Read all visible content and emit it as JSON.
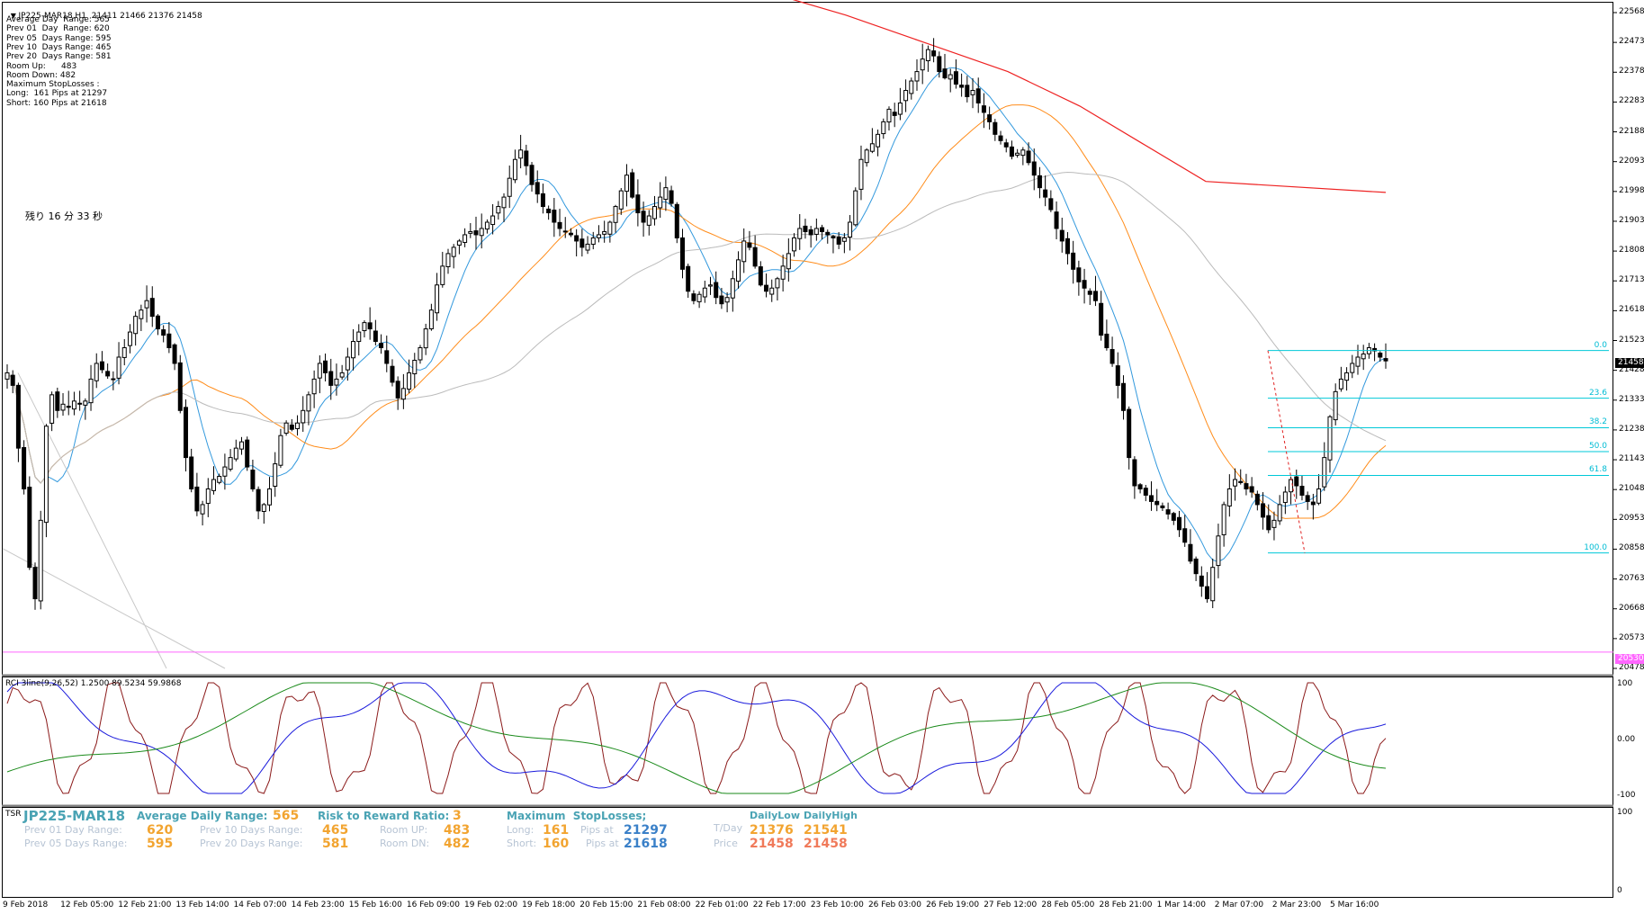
{
  "header": {
    "symbol_line": "JP225-MAR18,H1  21411 21466 21376 21458",
    "info_lines": [
      "Average Day  Range: 565",
      "Prev 01  Day  Range: 620",
      "Prev 05  Days Range: 595",
      "Prev 10  Days Range: 465",
      "Prev 20  Days Range: 581",
      "Room Up:      483",
      "Room Down: 482",
      "Maximum StopLosses :",
      "Long:  161 Pips at 21297",
      "Short: 160 Pips at 21618"
    ],
    "countdown": "残り 16 分 33 秒"
  },
  "price_axis": {
    "ticks": [
      "22568",
      "22473",
      "22378",
      "22283",
      "22188",
      "22093",
      "21998",
      "21903",
      "21808",
      "21713",
      "21618",
      "21523",
      "21428",
      "21333",
      "21238",
      "21143",
      "21048",
      "20953",
      "20858",
      "20763",
      "20668",
      "20573",
      "20478"
    ],
    "current_price": "21458",
    "current_price_bg": "#000000",
    "horizontal_line_price": "20530",
    "horizontal_line_color": "#ff66ff"
  },
  "fibonacci": {
    "color": "#00c8d8",
    "levels": [
      {
        "label": "0.0",
        "price": 21491
      },
      {
        "label": "23.6",
        "price": 21339
      },
      {
        "label": "38.2",
        "price": 21245
      },
      {
        "label": "50.0",
        "price": 21169
      },
      {
        "label": "61.8",
        "price": 21093
      },
      {
        "label": "100.0",
        "price": 20846
      }
    ]
  },
  "rci": {
    "label": "RCI 3line(9,26,52) 1.2500 89.5234 59.9868",
    "axis_ticks": [
      "100",
      "0.00",
      "-100"
    ],
    "colors": {
      "short": "#8b1a1a",
      "mid": "#1a1adc",
      "long": "#1a8a1a"
    }
  },
  "tsr": {
    "label": "TSR",
    "symbol": "JP225-MAR18",
    "avg_range_label": "Average Daily Range:",
    "avg_range_value": "565",
    "rr_label": "Risk to Reward Ratio:",
    "rr_value": "3",
    "maxsl_label": "Maximum  StopLosses;",
    "daily_low_label": "DailyLow",
    "daily_high_label": "DailyHigh",
    "prev01_label": "Prev 01 Day Range:",
    "prev01_value": "620",
    "prev05_label": "Prev 05 Days Range:",
    "prev05_value": "595",
    "prev10_label": "Prev 10 Days Range:",
    "prev10_value": "465",
    "prev20_label": "Prev 20 Days Range:",
    "prev20_value": "581",
    "roomup_label": "Room UP:",
    "roomup_value": "483",
    "roomdn_label": "Room DN:",
    "roomdn_value": "482",
    "long_label": "Long:",
    "long_value": "161",
    "short_label": "Short:",
    "short_value": "160",
    "pipsat_label": "Pips at",
    "long_price": "21297",
    "short_price": "21618",
    "tday_label": "T/Day",
    "price_label": "Price",
    "tday_low": "21376",
    "tday_high": "21541",
    "price_low": "21458",
    "price_high": "21458",
    "axis_ticks": [
      "100",
      "0"
    ]
  },
  "time_axis": {
    "labels": [
      "9 Feb 2018",
      "12 Feb 05:00",
      "12 Feb 21:00",
      "13 Feb 14:00",
      "14 Feb 07:00",
      "14 Feb 23:00",
      "15 Feb 16:00",
      "16 Feb 09:00",
      "19 Feb 02:00",
      "19 Feb 18:00",
      "20 Feb 15:00",
      "21 Feb 08:00",
      "22 Feb 01:00",
      "22 Feb 17:00",
      "23 Feb 10:00",
      "26 Feb 03:00",
      "26 Feb 19:00",
      "27 Feb 12:00",
      "28 Feb 05:00",
      "28 Feb 21:00",
      "1 Mar 14:00",
      "2 Mar 07:00",
      "2 Mar 23:00",
      "5 Mar 16:00"
    ]
  },
  "chart_data": {
    "type": "candlestick",
    "symbol": "JP225-MAR18",
    "timeframe": "H1",
    "last_bar": {
      "open": 21411,
      "high": 21466,
      "low": 21376,
      "close": 21458
    },
    "ylim": [
      20430,
      22600
    ],
    "closes": [
      21420,
      21380,
      21180,
      21050,
      20800,
      20700,
      20950,
      21250,
      21350,
      21300,
      21320,
      21310,
      21330,
      21320,
      21330,
      21400,
      21450,
      21430,
      21410,
      21400,
      21470,
      21500,
      21550,
      21600,
      21620,
      21650,
      21600,
      21560,
      21540,
      21500,
      21450,
      21300,
      21150,
      21050,
      20980,
      21000,
      21050,
      21080,
      21090,
      21120,
      21150,
      21180,
      21200,
      21120,
      21050,
      20980,
      21000,
      21050,
      21130,
      21220,
      21260,
      21240,
      21260,
      21300,
      21350,
      21400,
      21450,
      21420,
      21380,
      21400,
      21420,
      21470,
      21520,
      21550,
      21580,
      21560,
      21520,
      21500,
      21450,
      21390,
      21340,
      21370,
      21420,
      21460,
      21500,
      21560,
      21620,
      21700,
      21760,
      21800,
      21820,
      21840,
      21860,
      21870,
      21860,
      21880,
      21900,
      21920,
      21950,
      21980,
      22040,
      22100,
      22130,
      22080,
      22020,
      21990,
      21950,
      21930,
      21900,
      21880,
      21870,
      21860,
      21840,
      21820,
      21830,
      21850,
      21860,
      21870,
      21900,
      21950,
      22000,
      22050,
      21980,
      21930,
      21900,
      21920,
      21950,
      21980,
      22010,
      21960,
      21850,
      21750,
      21680,
      21650,
      21670,
      21690,
      21700,
      21660,
      21640,
      21660,
      21720,
      21780,
      21840,
      21820,
      21760,
      21700,
      21680,
      21690,
      21720,
      21760,
      21800,
      21850,
      21880,
      21870,
      21860,
      21880,
      21870,
      21860,
      21850,
      21830,
      21850,
      21900,
      22000,
      22100,
      22130,
      22150,
      22180,
      22220,
      22260,
      22240,
      22280,
      22320,
      22350,
      22380,
      22420,
      22450,
      22430,
      22380,
      22360,
      22370,
      22340,
      22330,
      22300,
      22320,
      22280,
      22250,
      22220,
      22180,
      22160,
      22140,
      22110,
      22120,
      22130,
      22090,
      22050,
      22010,
      21980,
      21940,
      21880,
      21840,
      21800,
      21750,
      21710,
      21690,
      21670,
      21650,
      21540,
      21500,
      21450,
      21380,
      21300,
      21150,
      21060,
      21050,
      21030,
      21010,
      21000,
      20990,
      20970,
      20950,
      20920,
      20880,
      20820,
      20780,
      20740,
      20700,
      20800,
      20900,
      21000,
      21050,
      21080,
      21070,
      21050,
      21040,
      21000,
      20960,
      20920,
      20950,
      21000,
      21040,
      21080,
      21060,
      21030,
      21010,
      21000,
      21050,
      21150,
      21280,
      21360,
      21400,
      21420,
      21450,
      21470,
      21480,
      21500,
      21490,
      21470,
      21458
    ],
    "moving_averages": [
      {
        "color": "#3399dd",
        "period": "short"
      },
      {
        "color": "#ff8c1a",
        "period": "mid"
      },
      {
        "color": "#bbbbbb",
        "period": "long"
      },
      {
        "color": "#ee2222",
        "period": "very long"
      }
    ]
  }
}
